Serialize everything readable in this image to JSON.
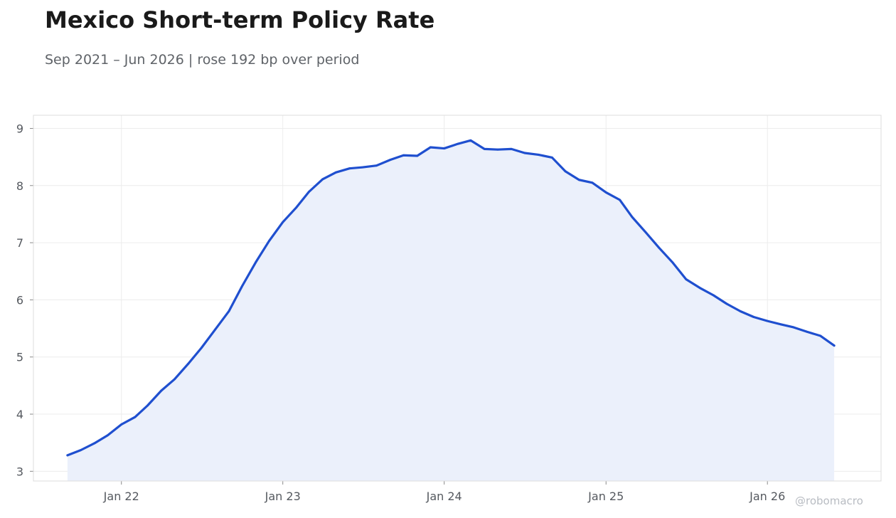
{
  "title": "Mexico Short-term Policy Rate",
  "subtitle": "Sep 2021 – Jun 2026 | rose 192 bp over period",
  "watermark": "@robomacro",
  "chart_data": {
    "type": "area",
    "title": "Mexico Short-term Policy Rate",
    "subtitle": "Sep 2021 – Jun 2026 | rose 192 bp over period",
    "xlabel": "",
    "ylabel": "",
    "ylim": [
      2.83,
      9.23
    ],
    "xlim": [
      "2021-06-16",
      "2026-09-15"
    ],
    "grid": true,
    "legend": "none",
    "colors": {
      "line": "#1f4fcf",
      "fill": "#ebf0fb",
      "grid": "#ececec",
      "frame": "#dcdcdc"
    },
    "x_ticks": [
      {
        "date": "2022-01-01",
        "label": "Jan 22"
      },
      {
        "date": "2023-01-01",
        "label": "Jan 23"
      },
      {
        "date": "2024-01-01",
        "label": "Jan 24"
      },
      {
        "date": "2025-01-01",
        "label": "Jan 25"
      },
      {
        "date": "2026-01-01",
        "label": "Jan 26"
      }
    ],
    "y_ticks": [
      3,
      4,
      5,
      6,
      7,
      8,
      9
    ],
    "series": [
      {
        "x": [
          "2021-09-01",
          "2021-10-01",
          "2021-11-01",
          "2021-12-01",
          "2022-01-01",
          "2022-02-01",
          "2022-03-01",
          "2022-04-01",
          "2022-05-01",
          "2022-06-01",
          "2022-07-01",
          "2022-08-01",
          "2022-09-01",
          "2022-10-01",
          "2022-11-01",
          "2022-12-01",
          "2023-01-01",
          "2023-02-01",
          "2023-03-01",
          "2023-04-01",
          "2023-05-01",
          "2023-06-01",
          "2023-07-01",
          "2023-08-01",
          "2023-09-01",
          "2023-10-01",
          "2023-11-01",
          "2023-12-01",
          "2024-01-01",
          "2024-02-01",
          "2024-03-01",
          "2024-04-01",
          "2024-05-01",
          "2024-06-01",
          "2024-07-01",
          "2024-08-01",
          "2024-09-01",
          "2024-10-01",
          "2024-11-01",
          "2024-12-01",
          "2025-01-01",
          "2025-02-01",
          "2025-03-01",
          "2025-04-01",
          "2025-05-01",
          "2025-06-01",
          "2025-07-01",
          "2025-08-01",
          "2025-09-01",
          "2025-10-01",
          "2025-11-01",
          "2025-12-01",
          "2026-01-01",
          "2026-02-01",
          "2026-03-01",
          "2026-04-01",
          "2026-05-01",
          "2026-06-01"
        ],
        "values": [
          3.28,
          3.37,
          3.49,
          3.63,
          3.82,
          3.95,
          4.15,
          4.41,
          4.61,
          4.88,
          5.16,
          5.48,
          5.8,
          6.24,
          6.66,
          7.03,
          7.36,
          7.62,
          7.89,
          8.11,
          8.23,
          8.3,
          8.32,
          8.35,
          8.45,
          8.53,
          8.52,
          8.67,
          8.65,
          8.73,
          8.79,
          8.64,
          8.63,
          8.64,
          8.57,
          8.54,
          8.49,
          8.25,
          8.1,
          8.05,
          7.88,
          7.75,
          7.45,
          7.18,
          6.91,
          6.65,
          6.36,
          6.21,
          6.08,
          5.93,
          5.8,
          5.7,
          5.63,
          5.57,
          5.52,
          5.44,
          5.37,
          5.2
        ]
      }
    ]
  }
}
